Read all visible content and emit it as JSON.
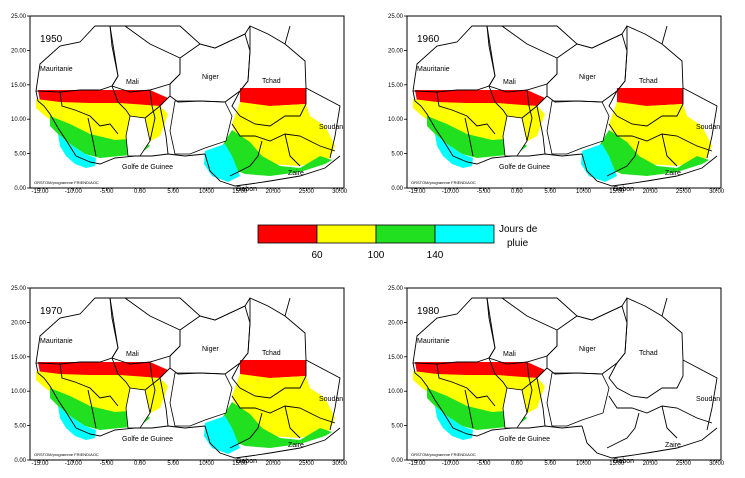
{
  "colors": {
    "red": "#ff0000",
    "yellow": "#ffff00",
    "green": "#20e020",
    "cyan": "#00ffff",
    "outline": "#000000"
  },
  "map_common": {
    "y_ticks": [
      "25.00",
      "20.00",
      "15.00",
      "10.00",
      "5.00",
      "0.00"
    ],
    "x_ticks": [
      "-15.00",
      "-10.00",
      "-5.00",
      "0.00",
      "5.00",
      "10.00",
      "15.00",
      "20.00",
      "25.00",
      "30.00"
    ],
    "labels": {
      "mauritanie": "Mauritanie",
      "mali": "Mali",
      "niger": "Niger",
      "tchad": "Tchad",
      "soudan": "Soudan",
      "golfe": "Golfe de Guinee",
      "gabon": "Gabon",
      "zaire": "Zaire"
    },
    "credit": "ORSTOM/programme FRIEND/AOC"
  },
  "maps": [
    {
      "year": "1950"
    },
    {
      "year": "1960"
    },
    {
      "year": "1970"
    },
    {
      "year": "1980"
    }
  ],
  "legend": {
    "title_line1": "Jours de",
    "title_line2": "pluie",
    "colors": [
      "#ff0000",
      "#ffff00",
      "#20e020",
      "#00ffff"
    ],
    "thresholds": [
      "60",
      "100",
      "140"
    ]
  }
}
